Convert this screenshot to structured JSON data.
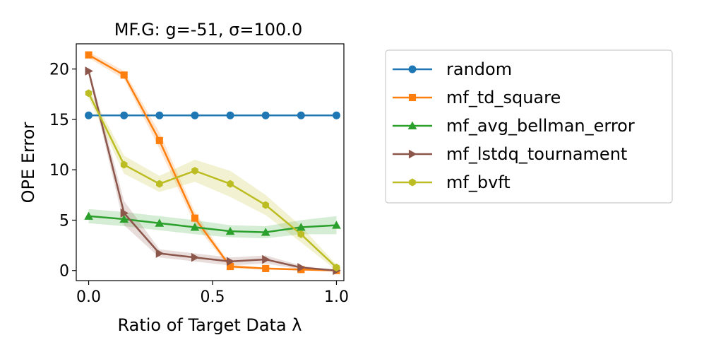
{
  "chart_data": {
    "type": "line",
    "title": "MF.G: g=-51, σ=100.0",
    "xlabel": "Ratio of Target Data λ",
    "ylabel": "OPE Error",
    "xlim": [
      -0.05,
      1.03
    ],
    "ylim": [
      -1.0,
      22.5
    ],
    "xticks": [
      0.0,
      0.5,
      1.0
    ],
    "xtick_labels": [
      "0.0",
      "0.5",
      "1.0"
    ],
    "yticks": [
      0,
      5,
      10,
      15,
      20
    ],
    "ytick_labels": [
      "0",
      "5",
      "10",
      "15",
      "20"
    ],
    "grid": false,
    "legend_position": "outside-right",
    "x": [
      0.0,
      0.1429,
      0.2857,
      0.4286,
      0.5714,
      0.7143,
      0.8571,
      1.0
    ],
    "series": [
      {
        "name": "random",
        "color": "#1f77b4",
        "marker": "circle",
        "values": [
          15.4,
          15.4,
          15.4,
          15.4,
          15.4,
          15.4,
          15.4,
          15.4
        ],
        "band": [
          0,
          0,
          0,
          0,
          0,
          0,
          0,
          0
        ]
      },
      {
        "name": "mf_td_square",
        "color": "#ff7f0e",
        "marker": "square",
        "values": [
          21.4,
          19.4,
          12.9,
          5.2,
          0.4,
          0.2,
          0.1,
          0.0
        ],
        "band": [
          0.3,
          0.4,
          0.8,
          0.6,
          0.2,
          0.1,
          0.1,
          0.0
        ]
      },
      {
        "name": "mf_avg_bellman_error",
        "color": "#2ca02c",
        "marker": "triangle-up",
        "values": [
          5.4,
          5.1,
          4.7,
          4.3,
          3.9,
          3.8,
          4.3,
          4.5
        ],
        "band": [
          0.7,
          0.7,
          0.7,
          0.7,
          0.6,
          0.6,
          0.7,
          0.9
        ]
      },
      {
        "name": "mf_lstdq_tournament",
        "color": "#8c564b",
        "marker": "triangle-right",
        "values": [
          19.8,
          5.7,
          1.7,
          1.3,
          0.9,
          1.1,
          0.3,
          0.0
        ],
        "band": [
          0.4,
          1.2,
          0.4,
          0.4,
          0.4,
          0.4,
          0.2,
          0.0
        ]
      },
      {
        "name": "mf_bvft",
        "color": "#bcbd22",
        "marker": "hexagon",
        "values": [
          17.6,
          10.5,
          8.6,
          9.9,
          8.6,
          6.5,
          3.6,
          0.3
        ],
        "band": [
          0.5,
          0.9,
          0.8,
          1.1,
          1.3,
          1.0,
          0.8,
          0.3
        ]
      }
    ]
  }
}
